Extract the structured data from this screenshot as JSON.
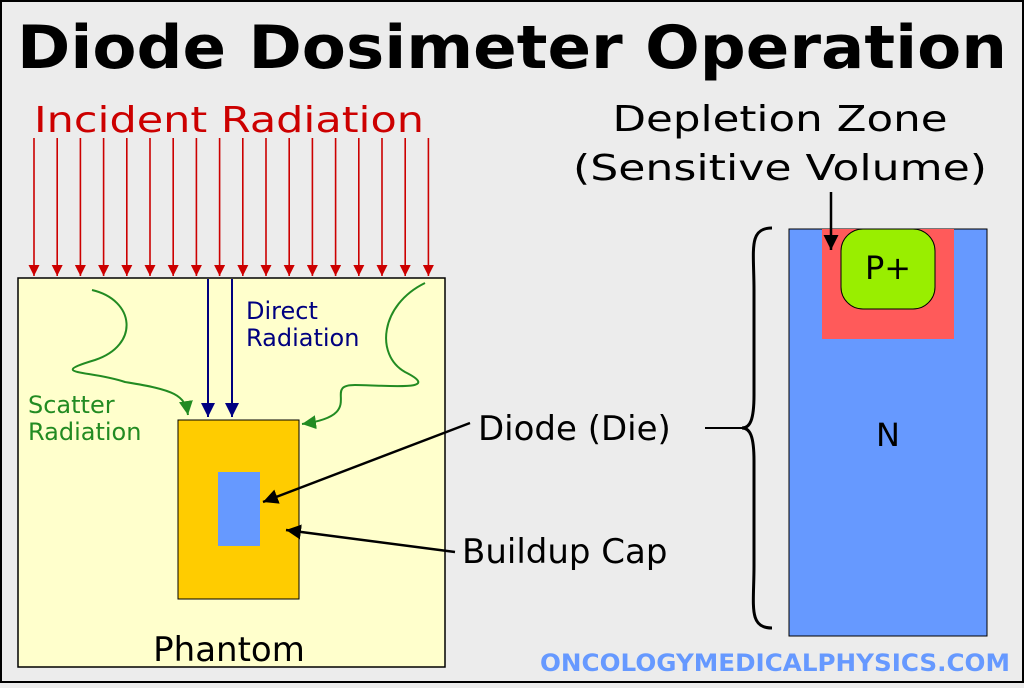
{
  "title": "Diode Dosimeter Operation",
  "labels": {
    "incident_radiation": "Incident Radiation",
    "direct_radiation_line1": "Direct",
    "direct_radiation_line2": "Radiation",
    "scatter_radiation_line1": "Scatter",
    "scatter_radiation_line2": "Radiation",
    "phantom": "Phantom",
    "diode_die": "Diode (Die)",
    "buildup_cap": "Buildup Cap",
    "depletion_zone_line1": "Depletion Zone",
    "depletion_zone_line2": "(Sensitive Volume)",
    "p_plus": "P+",
    "n_region": "N",
    "website": "ONCOLOGYMEDICALPHYSICS.COM"
  },
  "colors": {
    "background": "#ececec",
    "incident": "#cc0000",
    "direct": "#000080",
    "scatter": "#228b22",
    "phantom_fill": "#ffffcc",
    "buildup_cap_fill": "#ffcc00",
    "diode_fill": "#6699ff",
    "depletion_fill": "#ff5a5a",
    "p_plus_fill": "#99ee00",
    "website": "#6699ff"
  },
  "icons": {
    "incident_arrow": "arrow-down-icon",
    "pointer_arrow": "arrow-pointer-icon",
    "brace": "curly-brace-icon"
  }
}
